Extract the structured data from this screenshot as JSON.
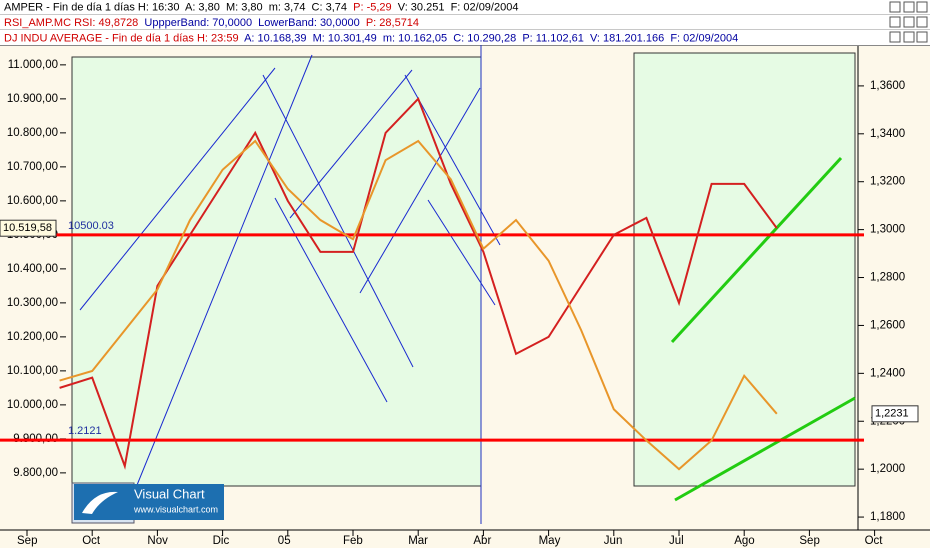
{
  "info_lines": [
    [
      {
        "text": "AMPER - Fin de día 1 días H: 16:30  A: 3,80  M: 3,80  m: 3,74  C: 3,74  ",
        "color": "#000000"
      },
      {
        "text": "P: -5,29",
        "color": "#d00000"
      },
      {
        "text": "  V: 30.251  F: 02/09/2004",
        "color": "#000000"
      }
    ],
    [
      {
        "text": "RSI_AMP.MC RSI: 49,8728",
        "color": "#d00000"
      },
      {
        "text": "  UppperBand: 70,0000  LowerBand: 30,0000",
        "color": "#0000a0"
      },
      {
        "text": "  P: 28,5714",
        "color": "#d00000"
      }
    ],
    [
      {
        "text": "DJ INDU AVERAGE - Fin de día 1 días H: 23:59",
        "color": "#d00000"
      },
      {
        "text": "  A: 10.168,39  M: 10.301,49  m: 10.162,05  C: 10.290,28  P: 11.102,61  V: 181.201.166  F: 02/09/2004",
        "color": "#0000a0"
      }
    ]
  ],
  "logo": {
    "title": "Visual Chart",
    "url": "www.visualchart.com"
  },
  "chart_data": {
    "type": "line",
    "categories": [
      "Sep",
      null,
      "Oct",
      null,
      "Nov",
      null,
      "Dic",
      null,
      "05",
      null,
      "Feb",
      null,
      "Mar",
      null,
      "Abr",
      null,
      "May",
      null,
      "Jun",
      null,
      "Jul",
      null,
      "Ago",
      null,
      "Sep",
      null,
      "Oct",
      null
    ],
    "series": [
      {
        "name": "DJ INDU AVERAGE",
        "color": "#d42020",
        "axis": "y",
        "last_label": "10.519,58",
        "values": [
          null,
          10050,
          10080,
          9820,
          10350,
          10500,
          10650,
          10800,
          10600,
          10450,
          10450,
          10800,
          10900,
          10650,
          10450,
          10150,
          10200,
          10350,
          10500,
          10550,
          10300,
          10650,
          10650,
          10519.58,
          null,
          null,
          null,
          null
        ]
      },
      {
        "name": "AMPER",
        "color": "#e8962a",
        "axis": "y2",
        "last_label": "1,2231",
        "values": [
          null,
          1.237,
          1.241,
          1.258,
          1.275,
          1.304,
          1.325,
          1.337,
          1.317,
          1.304,
          1.296,
          1.329,
          1.337,
          1.321,
          1.292,
          1.304,
          1.287,
          1.258,
          1.225,
          1.212,
          1.2,
          1.212,
          1.239,
          1.2231,
          null,
          null,
          null,
          null
        ]
      }
    ],
    "ylim": [
      9632,
      11029
    ],
    "yticks": [
      {
        "value": 9800,
        "label": "9.800,00"
      },
      {
        "value": 9900,
        "label": "9.900,00"
      },
      {
        "value": 10000,
        "label": "10.000,00"
      },
      {
        "value": 10100,
        "label": "10.100,00"
      },
      {
        "value": 10200,
        "label": "10.200,00"
      },
      {
        "value": 10300,
        "label": "10.300,00"
      },
      {
        "value": 10400,
        "label": "10.400,00"
      },
      {
        "value": 10500,
        "label": "10.500,00"
      },
      {
        "value": 10600,
        "label": "10.600,00"
      },
      {
        "value": 10700,
        "label": "10.700,00"
      },
      {
        "value": 10800,
        "label": "10.800,00"
      },
      {
        "value": 10900,
        "label": "10.900,00"
      },
      {
        "value": 11000,
        "label": "11.000,00"
      }
    ],
    "y2lim": [
      1.1746,
      1.3729
    ],
    "y2ticks": [
      {
        "value": 1.18,
        "label": "1,1800"
      },
      {
        "value": 1.2,
        "label": "1,2000"
      },
      {
        "value": 1.22,
        "label": "1,2200"
      },
      {
        "value": 1.24,
        "label": "1,2400"
      },
      {
        "value": 1.26,
        "label": "1,2600"
      },
      {
        "value": 1.28,
        "label": "1,2800"
      },
      {
        "value": 1.3,
        "label": "1,3000"
      },
      {
        "value": 1.32,
        "label": "1,3200"
      },
      {
        "value": 1.34,
        "label": "1,3400"
      },
      {
        "value": 1.36,
        "label": "1,3600"
      }
    ],
    "hlines": [
      {
        "value": 10500.03,
        "label": "10500.03",
        "axis": "y",
        "color": "#ff0000"
      },
      {
        "value": 1.2121,
        "label": "1.2121",
        "axis": "y2",
        "color": "#ff0000"
      }
    ]
  }
}
